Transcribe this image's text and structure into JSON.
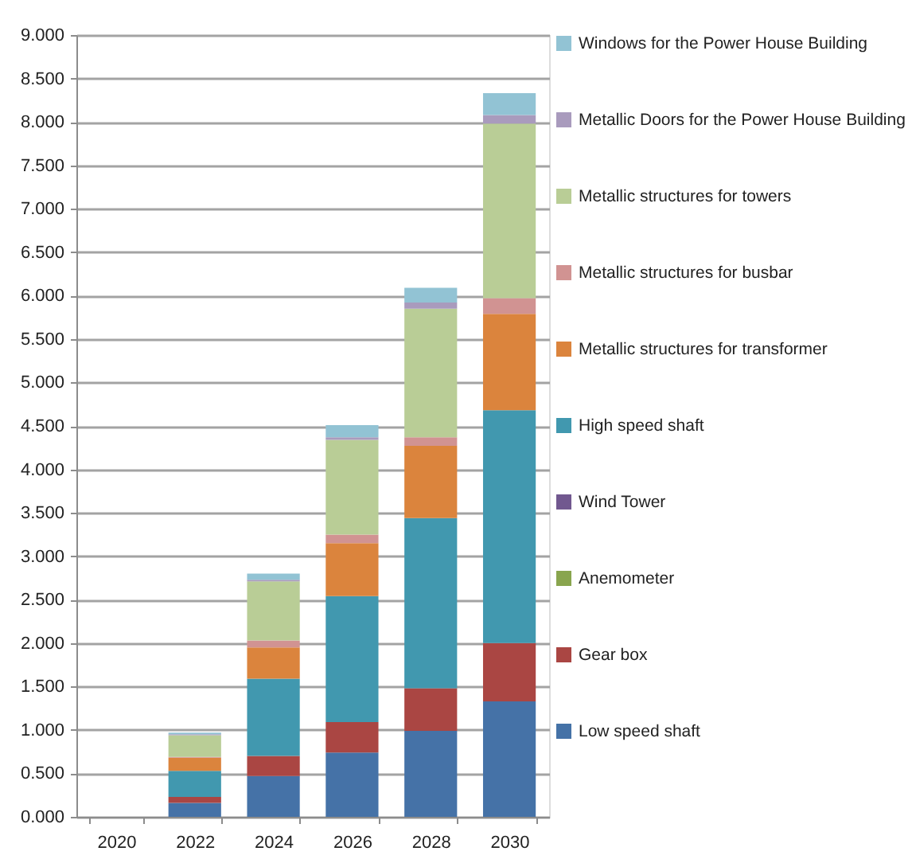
{
  "chart_data": {
    "type": "bar",
    "stacked": true,
    "categories": [
      "2020",
      "2022",
      "2024",
      "2026",
      "2028",
      "2030"
    ],
    "series": [
      {
        "name": "Low speed shaft",
        "color": "#4572a7",
        "values": [
          null,
          0.16,
          0.47,
          0.74,
          0.99,
          1.33
        ]
      },
      {
        "name": "Gear box",
        "color": "#aa4643",
        "values": [
          null,
          0.07,
          0.23,
          0.35,
          0.49,
          0.67
        ]
      },
      {
        "name": "Anemometer",
        "color": "#89a54e",
        "values": [
          null,
          0,
          0,
          0,
          0,
          0
        ]
      },
      {
        "name": "Wind Tower",
        "color": "#71588f",
        "values": [
          null,
          0,
          0,
          0,
          0,
          0
        ]
      },
      {
        "name": "High speed shaft",
        "color": "#4198af",
        "values": [
          null,
          0.3,
          0.89,
          1.45,
          1.96,
          2.68
        ]
      },
      {
        "name": "Metallic structures for transformer",
        "color": "#db843d",
        "values": [
          null,
          0.15,
          0.36,
          0.61,
          0.83,
          1.11
        ]
      },
      {
        "name": "Metallic structures for busbar",
        "color": "#d19392",
        "values": [
          null,
          0.01,
          0.08,
          0.1,
          0.1,
          0.18
        ]
      },
      {
        "name": "Metallic structures for towers",
        "color": "#b9cd96",
        "values": [
          null,
          0.25,
          0.68,
          1.09,
          1.48,
          2.01
        ]
      },
      {
        "name": "Metallic Doors for the Power House Building",
        "color": "#a99bbd",
        "values": [
          null,
          0.01,
          0.02,
          0.03,
          0.07,
          0.1
        ]
      },
      {
        "name": "Windows for the Power House Building",
        "color": "#92c3d4",
        "values": [
          null,
          0.02,
          0.07,
          0.14,
          0.17,
          0.25
        ]
      }
    ],
    "ylim": [
      0,
      9
    ],
    "yticks": [
      {
        "value": 0,
        "label": "0.000"
      },
      {
        "value": 0.5,
        "label": "0.500"
      },
      {
        "value": 1,
        "label": "1.000"
      },
      {
        "value": 1.5,
        "label": "1.500"
      },
      {
        "value": 2,
        "label": "2.000"
      },
      {
        "value": 2.5,
        "label": "2.500"
      },
      {
        "value": 3,
        "label": "3.000"
      },
      {
        "value": 3.5,
        "label": "3.500"
      },
      {
        "value": 4,
        "label": "4.000"
      },
      {
        "value": 4.5,
        "label": "4.500"
      },
      {
        "value": 5,
        "label": "5.000"
      },
      {
        "value": 5.5,
        "label": "5.500"
      },
      {
        "value": 6,
        "label": "6.000"
      },
      {
        "value": 6.5,
        "label": "6.500"
      },
      {
        "value": 7,
        "label": "7.000"
      },
      {
        "value": 7.5,
        "label": "7.500"
      },
      {
        "value": 8,
        "label": "8.000"
      },
      {
        "value": 8.5,
        "label": "8.500"
      },
      {
        "value": 9,
        "label": "9.000"
      }
    ],
    "grid": "y",
    "legend": "right"
  }
}
